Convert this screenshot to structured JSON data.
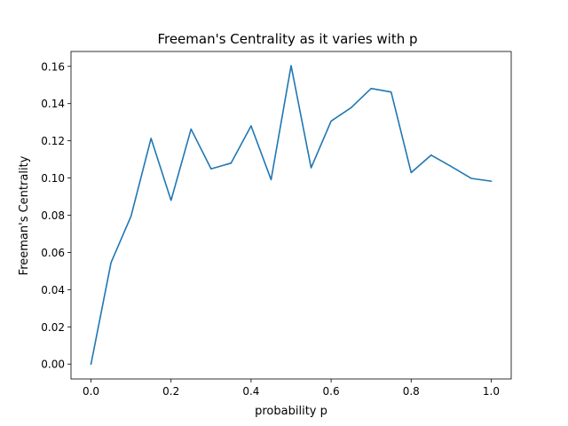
{
  "chart_data": {
    "type": "line",
    "title": "Freeman's Centrality as it varies with p",
    "xlabel": "probability p",
    "ylabel": "Freeman's Centrality",
    "xlim": [
      -0.05,
      1.05
    ],
    "ylim": [
      -0.008,
      0.168
    ],
    "xticks": [
      0.0,
      0.2,
      0.4,
      0.6,
      0.8,
      1.0
    ],
    "xtick_labels": [
      "0.0",
      "0.2",
      "0.4",
      "0.6",
      "0.8",
      "1.0"
    ],
    "yticks": [
      0.0,
      0.02,
      0.04,
      0.06,
      0.08,
      0.1,
      0.12,
      0.14,
      0.16
    ],
    "ytick_labels": [
      "0.00",
      "0.02",
      "0.04",
      "0.06",
      "0.08",
      "0.10",
      "0.12",
      "0.14",
      "0.16"
    ],
    "grid": false,
    "line_color": "#1f77b4",
    "series": [
      {
        "x": [
          0.0,
          0.05,
          0.1,
          0.15,
          0.2,
          0.25,
          0.3,
          0.35,
          0.4,
          0.45,
          0.5,
          0.55,
          0.6,
          0.65,
          0.7,
          0.75,
          0.8,
          0.85,
          0.9,
          0.95,
          1.0
        ],
        "values": [
          0.0,
          0.0545,
          0.0795,
          0.1213,
          0.088,
          0.1263,
          0.1049,
          0.108,
          0.128,
          0.0991,
          0.1604,
          0.1055,
          0.1306,
          0.1378,
          0.1481,
          0.1462,
          0.1029,
          0.1123,
          0.1062,
          0.0998,
          0.0983
        ]
      }
    ]
  }
}
